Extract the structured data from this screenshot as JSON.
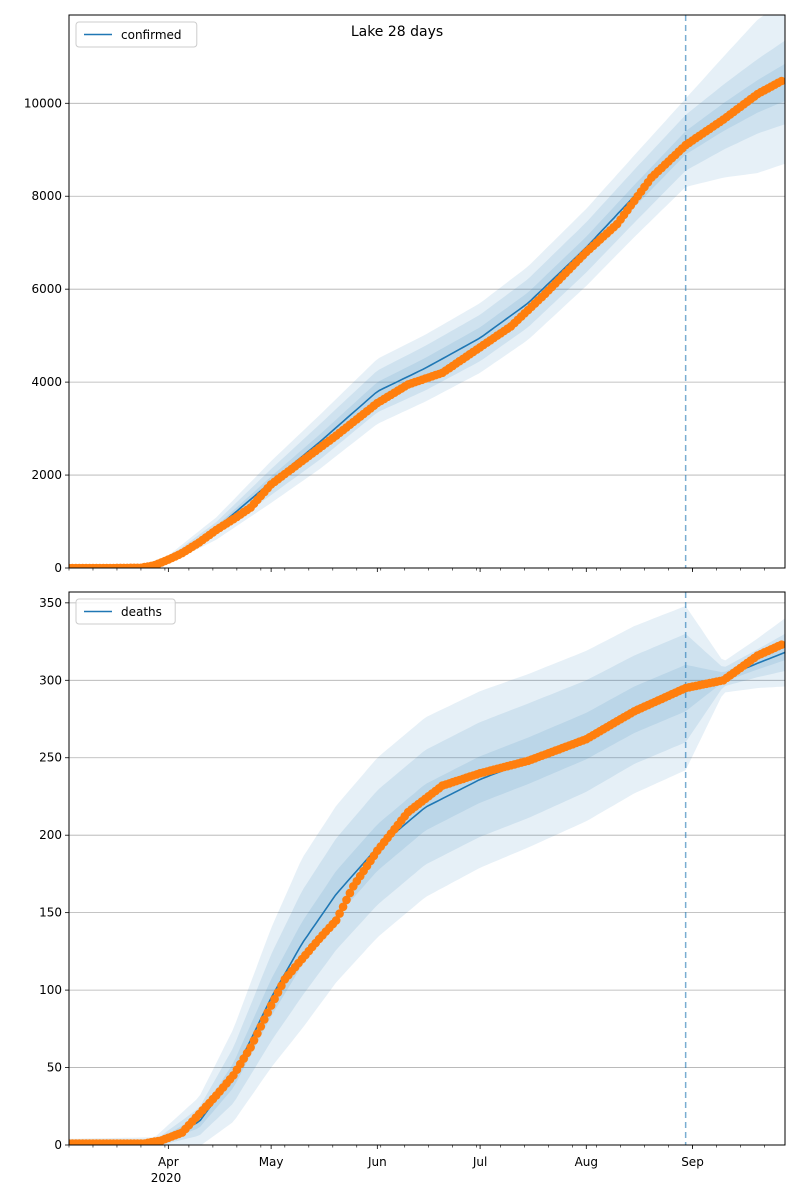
{
  "figure": {
    "title": "Lake 28 days",
    "x_tick_labels": [
      "Apr",
      "May",
      "Jun",
      "Jul",
      "Aug",
      "Sep"
    ],
    "x_year_label": "2020"
  },
  "colors": {
    "line": "#1f77b4",
    "points": "#ff7f0e",
    "band": "#1f77b4",
    "grid": "#b0b0b0",
    "marker_line": "#1f77b4"
  },
  "chart_data": [
    {
      "type": "line",
      "title": "Lake 28 days",
      "series": [
        {
          "name": "confirmed"
        }
      ],
      "legend": "top-left",
      "grid": "horizontal",
      "xlim": [
        "2020-03-03",
        "2020-09-28"
      ],
      "ylim": [
        0,
        11900
      ],
      "y_ticks": [
        0,
        2000,
        4000,
        6000,
        8000,
        10000
      ],
      "x_ticks": [
        "Apr",
        "May",
        "Jun",
        "Jul",
        "Aug",
        "Sep"
      ],
      "forecast_start": "2020-08-30",
      "observed": [
        {
          "date": "2020-03-03",
          "value": 0
        },
        {
          "date": "2020-03-15",
          "value": 0
        },
        {
          "date": "2020-03-24",
          "value": 5
        },
        {
          "date": "2020-03-28",
          "value": 60
        },
        {
          "date": "2020-04-01",
          "value": 180
        },
        {
          "date": "2020-04-05",
          "value": 320
        },
        {
          "date": "2020-04-10",
          "value": 550
        },
        {
          "date": "2020-04-15",
          "value": 820
        },
        {
          "date": "2020-04-20",
          "value": 1050
        },
        {
          "date": "2020-04-25",
          "value": 1300
        },
        {
          "date": "2020-05-01",
          "value": 1800
        },
        {
          "date": "2020-05-10",
          "value": 2300
        },
        {
          "date": "2020-05-20",
          "value": 2850
        },
        {
          "date": "2020-06-01",
          "value": 3550
        },
        {
          "date": "2020-06-10",
          "value": 3950
        },
        {
          "date": "2020-06-20",
          "value": 4200
        },
        {
          "date": "2020-07-01",
          "value": 4750
        },
        {
          "date": "2020-07-10",
          "value": 5200
        },
        {
          "date": "2020-07-20",
          "value": 5900
        },
        {
          "date": "2020-08-01",
          "value": 6800
        },
        {
          "date": "2020-08-10",
          "value": 7400
        },
        {
          "date": "2020-08-20",
          "value": 8400
        },
        {
          "date": "2020-08-30",
          "value": 9100
        },
        {
          "date": "2020-09-10",
          "value": 9650
        },
        {
          "date": "2020-09-20",
          "value": 10200
        },
        {
          "date": "2020-09-27",
          "value": 10480
        }
      ],
      "model": [
        {
          "date": "2020-03-03",
          "mean": 0,
          "s1": 0,
          "s2": 0,
          "s3": 0
        },
        {
          "date": "2020-03-24",
          "mean": 20,
          "s1": 10,
          "s2": 20,
          "s3": 35
        },
        {
          "date": "2020-04-01",
          "mean": 180,
          "s1": 20,
          "s2": 50,
          "s3": 90
        },
        {
          "date": "2020-04-15",
          "mean": 850,
          "s1": 60,
          "s2": 140,
          "s3": 240
        },
        {
          "date": "2020-05-01",
          "mean": 1850,
          "s1": 120,
          "s2": 280,
          "s3": 450
        },
        {
          "date": "2020-05-15",
          "mean": 2700,
          "s1": 160,
          "s2": 380,
          "s3": 580
        },
        {
          "date": "2020-06-01",
          "mean": 3800,
          "s1": 200,
          "s2": 450,
          "s3": 700
        },
        {
          "date": "2020-06-15",
          "mean": 4300,
          "s1": 220,
          "s2": 480,
          "s3": 720
        },
        {
          "date": "2020-07-01",
          "mean": 4950,
          "s1": 230,
          "s2": 500,
          "s3": 750
        },
        {
          "date": "2020-07-15",
          "mean": 5700,
          "s1": 230,
          "s2": 520,
          "s3": 790
        },
        {
          "date": "2020-08-01",
          "mean": 6900,
          "s1": 230,
          "s2": 540,
          "s3": 830
        },
        {
          "date": "2020-08-15",
          "mean": 8000,
          "s1": 240,
          "s2": 570,
          "s3": 880
        },
        {
          "date": "2020-08-30",
          "mean": 9150,
          "s1": 250,
          "s2": 600,
          "s3": 950
        },
        {
          "date": "2020-09-10",
          "mean": 9700,
          "s1": 300,
          "s2": 700,
          "s3": 1300
        },
        {
          "date": "2020-09-20",
          "mean": 10150,
          "s1": 350,
          "s2": 800,
          "s3": 1650
        },
        {
          "date": "2020-09-28",
          "mean": 10450,
          "s1": 400,
          "s2": 900,
          "s3": 1750
        }
      ]
    },
    {
      "type": "line",
      "series": [
        {
          "name": "deaths"
        }
      ],
      "legend": "top-left",
      "grid": "horizontal",
      "xlim": [
        "2020-03-03",
        "2020-09-28"
      ],
      "ylim": [
        0,
        357
      ],
      "y_ticks": [
        0,
        50,
        100,
        150,
        200,
        250,
        300,
        350
      ],
      "x_ticks": [
        "Apr",
        "May",
        "Jun",
        "Jul",
        "Aug",
        "Sep"
      ],
      "forecast_start": "2020-08-30",
      "observed": [
        {
          "date": "2020-03-03",
          "value": 1
        },
        {
          "date": "2020-03-25",
          "value": 1
        },
        {
          "date": "2020-03-30",
          "value": 3
        },
        {
          "date": "2020-04-05",
          "value": 8
        },
        {
          "date": "2020-04-10",
          "value": 20
        },
        {
          "date": "2020-04-15",
          "value": 32
        },
        {
          "date": "2020-04-20",
          "value": 45
        },
        {
          "date": "2020-04-25",
          "value": 63
        },
        {
          "date": "2020-05-01",
          "value": 90
        },
        {
          "date": "2020-05-05",
          "value": 107
        },
        {
          "date": "2020-05-10",
          "value": 120
        },
        {
          "date": "2020-05-15",
          "value": 133
        },
        {
          "date": "2020-05-20",
          "value": 145
        },
        {
          "date": "2020-05-25",
          "value": 167
        },
        {
          "date": "2020-06-01",
          "value": 190
        },
        {
          "date": "2020-06-10",
          "value": 215
        },
        {
          "date": "2020-06-20",
          "value": 232
        },
        {
          "date": "2020-07-01",
          "value": 240
        },
        {
          "date": "2020-07-15",
          "value": 248
        },
        {
          "date": "2020-08-01",
          "value": 262
        },
        {
          "date": "2020-08-15",
          "value": 280
        },
        {
          "date": "2020-08-30",
          "value": 295
        },
        {
          "date": "2020-09-10",
          "value": 300
        },
        {
          "date": "2020-09-20",
          "value": 316
        },
        {
          "date": "2020-09-27",
          "value": 323
        }
      ],
      "model": [
        {
          "date": "2020-03-03",
          "mean": 0,
          "s1": 1,
          "s2": 2,
          "s3": 4
        },
        {
          "date": "2020-03-28",
          "mean": 1,
          "s1": 1,
          "s2": 2,
          "s3": 4
        },
        {
          "date": "2020-04-10",
          "mean": 15,
          "s1": 4,
          "s2": 9,
          "s3": 16
        },
        {
          "date": "2020-04-20",
          "mean": 45,
          "s1": 8,
          "s2": 18,
          "s3": 30
        },
        {
          "date": "2020-05-01",
          "mean": 95,
          "s1": 12,
          "s2": 28,
          "s3": 45
        },
        {
          "date": "2020-05-10",
          "mean": 130,
          "s1": 14,
          "s2": 34,
          "s3": 55
        },
        {
          "date": "2020-05-20",
          "mean": 162,
          "s1": 15,
          "s2": 36,
          "s3": 57
        },
        {
          "date": "2020-06-01",
          "mean": 192,
          "s1": 15,
          "s2": 37,
          "s3": 58
        },
        {
          "date": "2020-06-15",
          "mean": 218,
          "s1": 15,
          "s2": 37,
          "s3": 58
        },
        {
          "date": "2020-07-01",
          "mean": 236,
          "s1": 15,
          "s2": 37,
          "s3": 57
        },
        {
          "date": "2020-07-15",
          "mean": 248,
          "s1": 15,
          "s2": 37,
          "s3": 56
        },
        {
          "date": "2020-08-01",
          "mean": 264,
          "s1": 15,
          "s2": 36,
          "s3": 55
        },
        {
          "date": "2020-08-15",
          "mean": 281,
          "s1": 15,
          "s2": 35,
          "s3": 54
        },
        {
          "date": "2020-08-30",
          "mean": 295,
          "s1": 15,
          "s2": 35,
          "s3": 53
        },
        {
          "date": "2020-09-10",
          "mean": 302,
          "s1": 3,
          "s2": 6,
          "s3": 10
        },
        {
          "date": "2020-09-20",
          "mean": 311,
          "s1": 4,
          "s2": 9,
          "s3": 16
        },
        {
          "date": "2020-09-28",
          "mean": 318,
          "s1": 5,
          "s2": 12,
          "s3": 22
        }
      ]
    }
  ]
}
